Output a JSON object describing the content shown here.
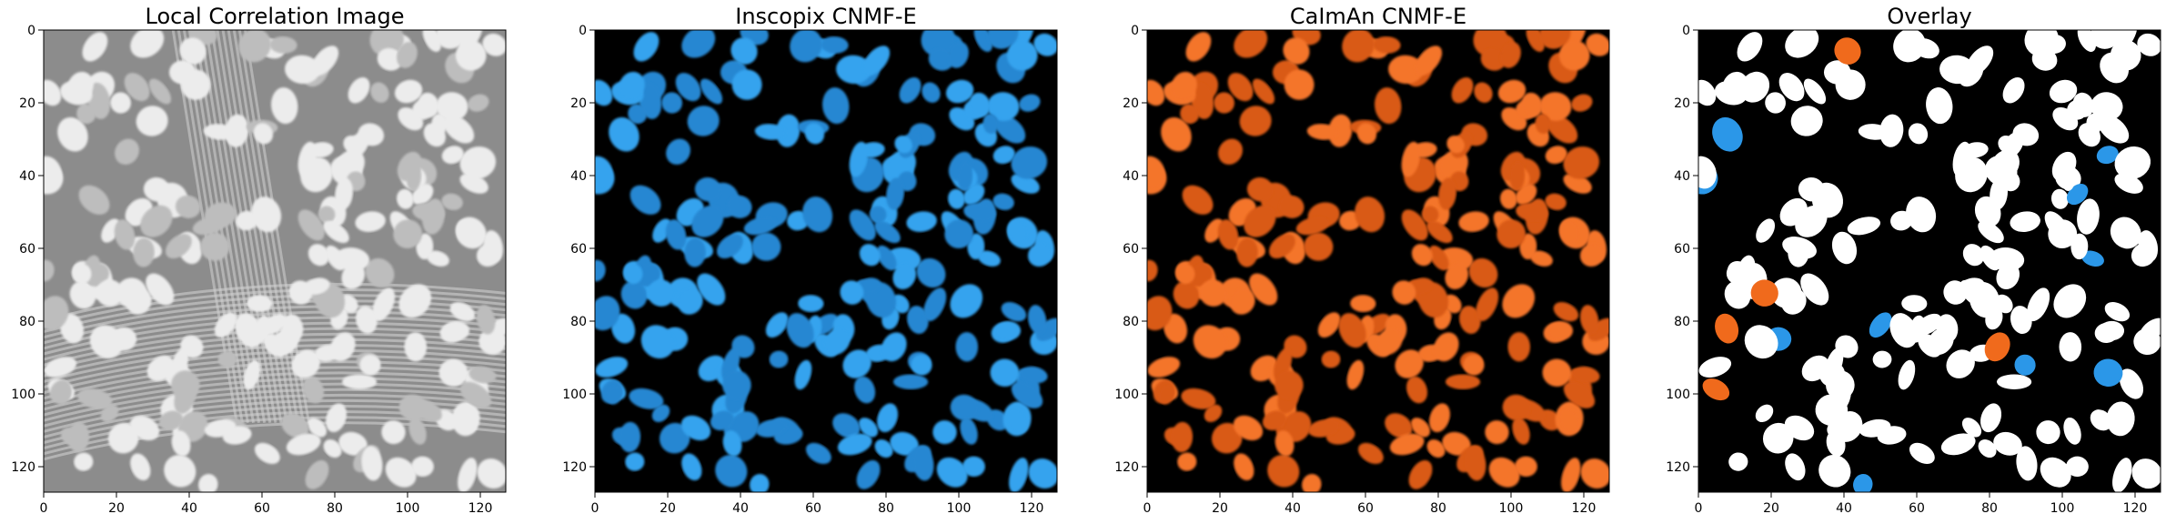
{
  "figure": {
    "panels": [
      {
        "title": "Local Correlation Image",
        "style": "grayscale"
      },
      {
        "title": "Inscopix CNMF-E",
        "style": "blue",
        "color": "#2b97e8"
      },
      {
        "title": "CaImAn CNMF-E",
        "style": "orange",
        "color": "#f06a1c"
      },
      {
        "title": "Overlay",
        "style": "overlay",
        "colors": {
          "both": "#ffffff",
          "inscopix_only": "#2b97e8",
          "caiman_only": "#f06a1c",
          "background": "#000000"
        }
      }
    ]
  },
  "chart_data": [
    {
      "type": "heatmap",
      "title": "Local Correlation Image",
      "colormap": "gray",
      "xlim": [
        0,
        127
      ],
      "ylim": [
        127,
        0
      ],
      "x_ticks": [
        0,
        20,
        40,
        60,
        80,
        100,
        120
      ],
      "y_ticks": [
        0,
        20,
        40,
        60,
        80,
        100,
        120
      ],
      "grid": false
    },
    {
      "type": "heatmap",
      "title": "Inscopix CNMF-E",
      "colormap": "blue",
      "xlim": [
        0,
        127
      ],
      "ylim": [
        127,
        0
      ],
      "x_ticks": [
        0,
        20,
        40,
        60,
        80,
        100,
        120
      ],
      "y_ticks": [
        0,
        20,
        40,
        60,
        80,
        100,
        120
      ],
      "grid": false
    },
    {
      "type": "heatmap",
      "title": "CaImAn CNMF-E",
      "colormap": "orange",
      "xlim": [
        0,
        127
      ],
      "ylim": [
        127,
        0
      ],
      "x_ticks": [
        0,
        20,
        40,
        60,
        80,
        100,
        120
      ],
      "y_ticks": [
        0,
        20,
        40,
        60,
        80,
        100,
        120
      ],
      "grid": false
    },
    {
      "type": "heatmap",
      "title": "Overlay",
      "colormap": "binary overlay",
      "xlim": [
        0,
        127
      ],
      "ylim": [
        127,
        0
      ],
      "x_ticks": [
        0,
        20,
        40,
        60,
        80,
        100,
        120
      ],
      "y_ticks": [
        0,
        20,
        40,
        60,
        80,
        100,
        120
      ],
      "grid": false
    }
  ]
}
